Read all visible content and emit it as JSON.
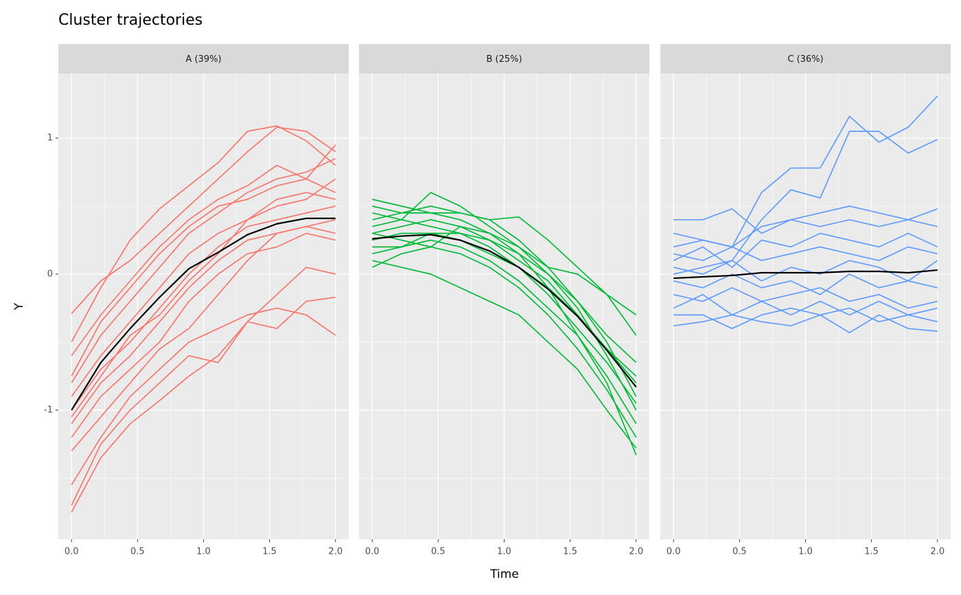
{
  "chart_data": {
    "type": "line",
    "title": "Cluster trajectories",
    "x_label": "Time",
    "y_label": "Y",
    "x": [
      0,
      0.222,
      0.444,
      0.667,
      0.889,
      1.111,
      1.333,
      1.556,
      1.778,
      2
    ],
    "xlim": [
      -0.1,
      2.1
    ],
    "ylim": [
      -1.95,
      1.475
    ],
    "xticks": [
      {
        "value": 0,
        "label": "0.0"
      },
      {
        "value": 0.5,
        "label": "0.5"
      },
      {
        "value": 1,
        "label": "1.0"
      },
      {
        "value": 1.5,
        "label": "1.5"
      },
      {
        "value": 2,
        "label": "2.0"
      }
    ],
    "yticks": [
      -1,
      0,
      1
    ],
    "minor_xticks": [
      0.25,
      0.75,
      1.25,
      1.75
    ],
    "minor_yticks": [
      -1.5,
      -0.5,
      0.5
    ],
    "grid": true,
    "panels": [
      {
        "label": "A (39%)",
        "color": "#F8766D",
        "series": [
          {
            "values": [
              -0.29,
              -0.05,
              0.1,
              0.3,
              0.5,
              0.7,
              0.9,
              1.08,
              1.05,
              0.9
            ]
          },
          {
            "values": [
              -0.5,
              -0.1,
              0.25,
              0.48,
              0.65,
              0.82,
              1.05,
              1.09,
              0.98,
              0.8
            ]
          },
          {
            "values": [
              -0.8,
              -0.45,
              -0.2,
              0.05,
              0.3,
              0.45,
              0.6,
              0.7,
              0.75,
              0.85
            ]
          },
          {
            "values": [
              -0.9,
              -0.6,
              -0.35,
              -0.1,
              0.15,
              0.3,
              0.4,
              0.55,
              0.6,
              0.55
            ]
          },
          {
            "values": [
              -1.0,
              -0.7,
              -0.5,
              -0.25,
              0.0,
              0.2,
              0.35,
              0.4,
              0.45,
              0.5
            ]
          },
          {
            "values": [
              -1.1,
              -0.8,
              -0.6,
              -0.35,
              -0.1,
              0.1,
              0.25,
              0.3,
              0.35,
              0.4
            ]
          },
          {
            "values": [
              -1.2,
              -0.9,
              -0.7,
              -0.5,
              -0.2,
              0.0,
              0.15,
              0.2,
              0.3,
              0.25
            ]
          },
          {
            "values": [
              -1.3,
              -1.05,
              -0.8,
              -0.55,
              -0.4,
              -0.15,
              0.1,
              0.3,
              0.35,
              0.3
            ]
          },
          {
            "values": [
              -1.55,
              -1.2,
              -0.9,
              -0.7,
              -0.5,
              -0.4,
              -0.3,
              -0.25,
              -0.3,
              -0.45
            ]
          },
          {
            "values": [
              -1.75,
              -1.35,
              -1.1,
              -0.93,
              -0.75,
              -0.6,
              -0.35,
              -0.15,
              0.05,
              0.0
            ]
          },
          {
            "values": [
              -1.7,
              -1.25,
              -1.0,
              -0.8,
              -0.6,
              -0.65,
              -0.35,
              -0.4,
              -0.2,
              -0.17
            ]
          },
          {
            "values": [
              -0.75,
              -0.35,
              -0.1,
              0.15,
              0.35,
              0.5,
              0.55,
              0.65,
              0.7,
              0.95
            ]
          },
          {
            "values": [
              -0.6,
              -0.3,
              -0.05,
              0.2,
              0.4,
              0.55,
              0.65,
              0.8,
              0.7,
              0.6
            ]
          },
          {
            "values": [
              -1.05,
              -0.75,
              -0.45,
              -0.3,
              -0.05,
              0.15,
              0.4,
              0.5,
              0.55,
              0.7
            ]
          }
        ],
        "mean": {
          "color": "#000000",
          "values": [
            -1.0,
            -0.65,
            -0.4,
            -0.17,
            0.04,
            0.16,
            0.29,
            0.37,
            0.41,
            0.41
          ]
        }
      },
      {
        "label": "B (25%)",
        "color": "#00BA38",
        "series": [
          {
            "values": [
              0.55,
              0.5,
              0.45,
              0.4,
              0.3,
              0.15,
              -0.1,
              -0.45,
              -0.8,
              -1.33
            ]
          },
          {
            "values": [
              0.5,
              0.45,
              0.5,
              0.45,
              0.4,
              0.25,
              0.05,
              -0.2,
              -0.5,
              -0.9
            ]
          },
          {
            "values": [
              0.35,
              0.4,
              0.6,
              0.5,
              0.35,
              0.2,
              0.0,
              -0.25,
              -0.6,
              -1.0
            ]
          },
          {
            "values": [
              0.3,
              0.35,
              0.4,
              0.35,
              0.25,
              0.1,
              -0.05,
              -0.3,
              -0.55,
              -0.8
            ]
          },
          {
            "values": [
              0.25,
              0.3,
              0.3,
              0.25,
              0.15,
              0.05,
              -0.15,
              -0.4,
              -0.65,
              -0.95
            ]
          },
          {
            "values": [
              0.2,
              0.2,
              0.25,
              0.2,
              0.1,
              -0.05,
              -0.25,
              -0.45,
              -0.75,
              -1.1
            ]
          },
          {
            "values": [
              0.1,
              0.05,
              0.0,
              -0.1,
              -0.2,
              -0.3,
              -0.5,
              -0.7,
              -1.0,
              -1.28
            ]
          },
          {
            "values": [
              0.4,
              0.45,
              0.45,
              0.45,
              0.4,
              0.42,
              0.25,
              0.05,
              -0.15,
              -0.3
            ]
          },
          {
            "values": [
              0.15,
              0.2,
              0.3,
              0.3,
              0.25,
              0.15,
              0.0,
              -0.2,
              -0.45,
              -0.65
            ]
          },
          {
            "values": [
              0.45,
              0.4,
              0.35,
              0.3,
              0.2,
              0.05,
              -0.1,
              -0.3,
              -0.55,
              -0.75
            ]
          },
          {
            "values": [
              0.05,
              0.15,
              0.2,
              0.15,
              0.05,
              -0.1,
              -0.3,
              -0.55,
              -0.85,
              -1.2
            ]
          },
          {
            "values": [
              0.3,
              0.25,
              0.2,
              0.35,
              0.3,
              0.2,
              0.05,
              0.0,
              -0.15,
              -0.45
            ]
          }
        ],
        "mean": {
          "color": "#000000",
          "values": [
            0.26,
            0.28,
            0.29,
            0.25,
            0.17,
            0.05,
            -0.11,
            -0.31,
            -0.56,
            -0.83
          ]
        }
      },
      {
        "label": "C (36%)",
        "color": "#619CFF",
        "series": [
          {
            "values": [
              0.4,
              0.4,
              0.48,
              0.3,
              0.4,
              0.35,
              0.4,
              0.35,
              0.4,
              0.48
            ]
          },
          {
            "values": [
              0.2,
              0.25,
              0.2,
              0.6,
              0.78,
              0.78,
              1.16,
              0.97,
              1.08,
              1.31
            ]
          },
          {
            "values": [
              0.0,
              0.05,
              0.1,
              0.4,
              0.62,
              0.56,
              1.05,
              1.05,
              0.89,
              0.99
            ]
          },
          {
            "values": [
              0.3,
              0.25,
              0.2,
              0.35,
              0.4,
              0.45,
              0.5,
              0.45,
              0.4,
              0.35
            ]
          },
          {
            "values": [
              0.15,
              0.1,
              0.2,
              0.1,
              0.15,
              0.2,
              0.15,
              0.1,
              0.2,
              0.15
            ]
          },
          {
            "values": [
              0.05,
              0.0,
              0.1,
              -0.05,
              0.05,
              0.0,
              0.1,
              0.05,
              -0.05,
              0.1
            ]
          },
          {
            "values": [
              -0.05,
              -0.1,
              0.0,
              -0.1,
              -0.05,
              -0.15,
              0.0,
              -0.1,
              -0.05,
              -0.1
            ]
          },
          {
            "values": [
              -0.15,
              -0.2,
              -0.1,
              -0.2,
              -0.15,
              -0.1,
              -0.2,
              -0.15,
              -0.25,
              -0.2
            ]
          },
          {
            "values": [
              -0.3,
              -0.3,
              -0.4,
              -0.3,
              -0.25,
              -0.3,
              -0.25,
              -0.35,
              -0.3,
              -0.35
            ]
          },
          {
            "values": [
              -0.38,
              -0.35,
              -0.3,
              -0.35,
              -0.38,
              -0.3,
              -0.43,
              -0.3,
              -0.4,
              -0.42
            ]
          },
          {
            "values": [
              0.1,
              0.2,
              0.05,
              0.25,
              0.2,
              0.3,
              0.25,
              0.2,
              0.3,
              0.2
            ]
          },
          {
            "values": [
              -0.25,
              -0.15,
              -0.3,
              -0.2,
              -0.3,
              -0.2,
              -0.3,
              -0.2,
              -0.3,
              -0.25
            ]
          }
        ],
        "mean": {
          "color": "#000000",
          "values": [
            -0.03,
            -0.02,
            -0.01,
            0.01,
            0.01,
            0.01,
            0.02,
            0.02,
            0.01,
            0.03
          ]
        }
      }
    ]
  }
}
